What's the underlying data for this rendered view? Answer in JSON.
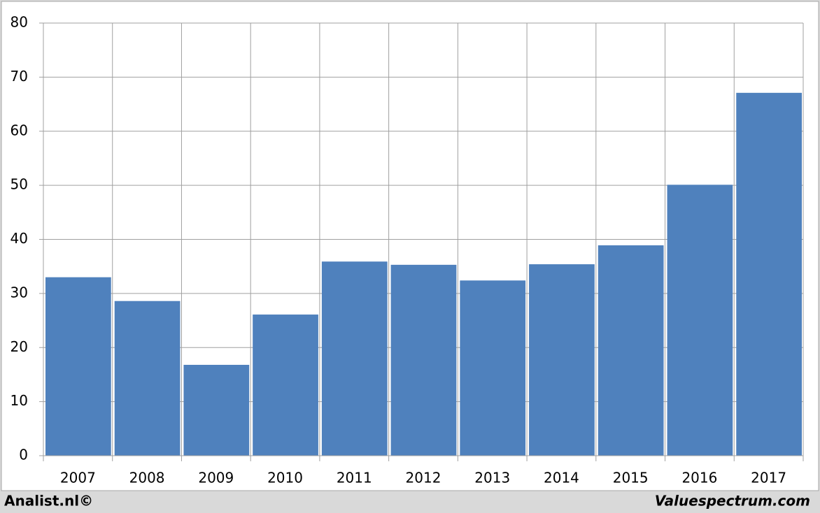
{
  "chart_data": {
    "type": "bar",
    "categories": [
      "2007",
      "2008",
      "2009",
      "2010",
      "2011",
      "2012",
      "2013",
      "2014",
      "2015",
      "2016",
      "2017"
    ],
    "values": [
      33,
      28.6,
      16.8,
      26.1,
      35.9,
      35.3,
      32.4,
      35.4,
      38.9,
      50.1,
      67.1
    ],
    "color": "#4f81bd",
    "ylim": [
      0,
      80
    ],
    "yticks": [
      0,
      10,
      20,
      30,
      40,
      50,
      60,
      70,
      80
    ],
    "grid": true
  },
  "footer": {
    "left": "Analist.nl©",
    "right": "Valuespectrum.com"
  }
}
